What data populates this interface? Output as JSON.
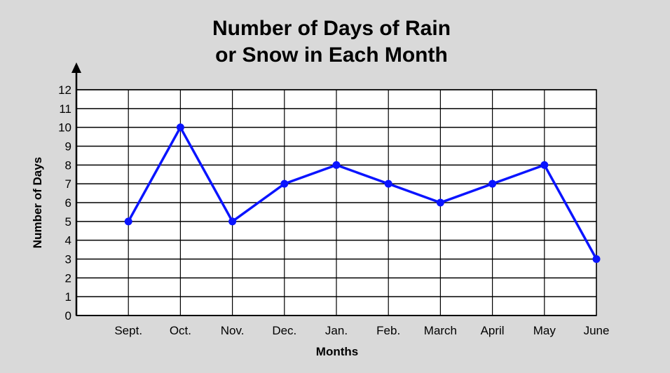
{
  "chart_data": {
    "type": "line",
    "title_line1": "Number of Days of Rain",
    "title_line2": "or Snow in Each Month",
    "xlabel": "Months",
    "ylabel": "Number of Days",
    "categories": [
      "Sept.",
      "Oct.",
      "Nov.",
      "Dec.",
      "Jan.",
      "Feb.",
      "March",
      "April",
      "May",
      "June"
    ],
    "values": [
      5,
      10,
      5,
      7,
      8,
      7,
      6,
      7,
      8,
      3
    ],
    "ylim": [
      0,
      12
    ],
    "yticks": [
      "0",
      "1",
      "2",
      "3",
      "4",
      "5",
      "6",
      "7",
      "8",
      "9",
      "10",
      "11",
      "12"
    ],
    "grid": true,
    "line_color": "#0a14ff"
  }
}
